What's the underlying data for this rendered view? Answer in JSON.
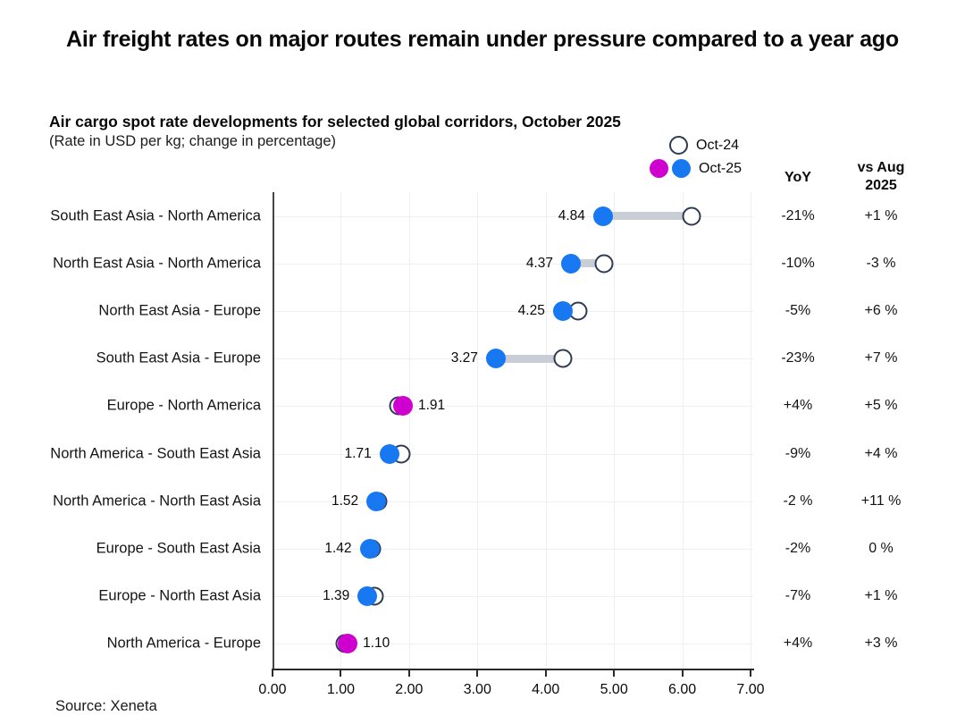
{
  "header": {
    "title": "Air freight rates on major routes remain under pressure compared to a year ago"
  },
  "chart_data": {
    "type": "dumbbell",
    "title": "Air cargo spot rate developments for selected global corridors, October 2025",
    "subtitle": "(Rate in USD per kg; change in percentage)",
    "legend": {
      "oct24_label": "Oct-24",
      "oct25_label": "Oct-25"
    },
    "columns": {
      "yoy_header": "YoY",
      "vs_aug_header_line1": "vs Aug",
      "vs_aug_header_line2": "2025"
    },
    "xlim": [
      0,
      7
    ],
    "x_tick_labels": [
      "0.00",
      "1.00",
      "2.00",
      "3.00",
      "4.00",
      "5.00",
      "6.00",
      "7.00"
    ],
    "grid": true,
    "colors": {
      "blue": "#1778f2",
      "magenta": "#cf00cf",
      "connector": "#c9ced6",
      "open_circle_stroke": "#2e3b52"
    },
    "rows": [
      {
        "route": "South East Asia - North America",
        "oct25": 4.84,
        "oct24": 6.13,
        "oct25_color": "blue",
        "value_label": "4.84",
        "label_side": "left",
        "yoy": "-21%",
        "vs_aug": "+1 %"
      },
      {
        "route": "North East Asia - North America",
        "oct25": 4.37,
        "oct24": 4.86,
        "oct25_color": "blue",
        "value_label": "4.37",
        "label_side": "left",
        "yoy": "-10%",
        "vs_aug": "-3 %"
      },
      {
        "route": "North East Asia - Europe",
        "oct25": 4.25,
        "oct24": 4.47,
        "oct25_color": "blue",
        "value_label": "4.25",
        "label_side": "left",
        "yoy": "-5%",
        "vs_aug": "+6 %"
      },
      {
        "route": "South East Asia - Europe",
        "oct25": 3.27,
        "oct24": 4.25,
        "oct25_color": "blue",
        "value_label": "3.27",
        "label_side": "left",
        "yoy": "-23%",
        "vs_aug": "+7 %"
      },
      {
        "route": "Europe - North America",
        "oct25": 1.91,
        "oct24": 1.84,
        "oct25_color": "magenta",
        "value_label": "1.91",
        "label_side": "right",
        "yoy": "+4%",
        "vs_aug": "+5 %"
      },
      {
        "route": "North America - South East Asia",
        "oct25": 1.71,
        "oct24": 1.88,
        "oct25_color": "blue",
        "value_label": "1.71",
        "label_side": "left",
        "yoy": "-9%",
        "vs_aug": "+4 %"
      },
      {
        "route": "North America - North East Asia",
        "oct25": 1.52,
        "oct24": 1.55,
        "oct25_color": "blue",
        "value_label": "1.52",
        "label_side": "left",
        "yoy": "-2 %",
        "vs_aug": "+11 %"
      },
      {
        "route": "Europe - South East Asia",
        "oct25": 1.42,
        "oct24": 1.45,
        "oct25_color": "blue",
        "value_label": "1.42",
        "label_side": "left",
        "yoy": "-2%",
        "vs_aug": "0 %"
      },
      {
        "route": "Europe - North East Asia",
        "oct25": 1.39,
        "oct24": 1.49,
        "oct25_color": "blue",
        "value_label": "1.39",
        "label_side": "left",
        "yoy": "-7%",
        "vs_aug": "+1 %"
      },
      {
        "route": "North America - Europe",
        "oct25": 1.1,
        "oct24": 1.06,
        "oct25_color": "magenta",
        "value_label": "1.10",
        "label_side": "right",
        "yoy": "+4%",
        "vs_aug": "+3 %"
      }
    ],
    "source": "Source: Xeneta"
  }
}
